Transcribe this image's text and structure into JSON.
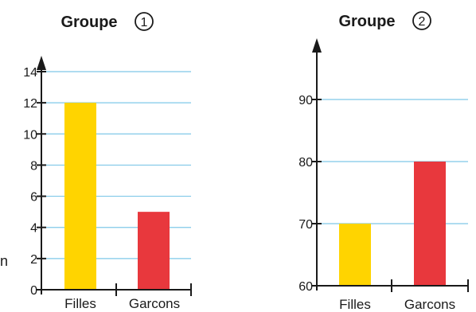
{
  "stray_text": "n",
  "chart_data": [
    {
      "type": "bar",
      "title": "Groupe",
      "title_badge": "1",
      "categories": [
        "Filles",
        "Garcons"
      ],
      "values": [
        12,
        5
      ],
      "colors": [
        "#FFD400",
        "#E8383D"
      ],
      "ylim": [
        0,
        14
      ],
      "yticks": [
        0,
        2,
        4,
        6,
        8,
        10,
        12,
        14
      ],
      "grid": true,
      "gridline_color": "#7FC8E8",
      "xlabel": "",
      "ylabel": ""
    },
    {
      "type": "bar",
      "title": "Groupe",
      "title_badge": "2",
      "categories": [
        "Filles",
        "Garcons"
      ],
      "values": [
        70,
        80
      ],
      "colors": [
        "#FFD400",
        "#E8383D"
      ],
      "ylim": [
        60,
        90
      ],
      "yticks": [
        60,
        70,
        80,
        90
      ],
      "grid": true,
      "gridline_color": "#7FC8E8",
      "xlabel": "",
      "ylabel": ""
    }
  ]
}
